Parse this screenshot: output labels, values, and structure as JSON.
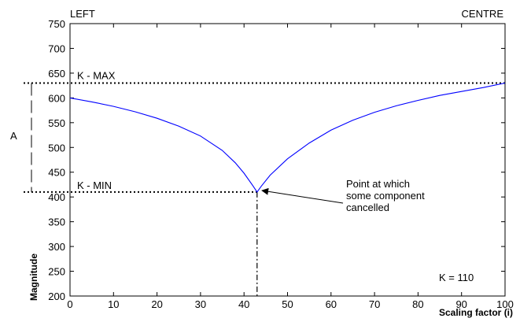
{
  "chart_data": {
    "type": "line",
    "title": "",
    "xlabel": "Scaling factor (i)",
    "ylabel": "Magnitude",
    "xlim": [
      0,
      100
    ],
    "ylim": [
      200,
      750
    ],
    "x_ticks": [
      0,
      10,
      20,
      30,
      40,
      50,
      60,
      70,
      80,
      90,
      100
    ],
    "y_ticks": [
      200,
      250,
      300,
      350,
      400,
      450,
      500,
      550,
      600,
      650,
      700,
      750
    ],
    "grid": false,
    "series": [
      {
        "color": "#0000ff",
        "x": [
          0,
          5,
          10,
          15,
          20,
          25,
          30,
          35,
          38,
          40,
          42,
          43,
          44,
          46,
          50,
          55,
          60,
          65,
          70,
          75,
          80,
          85,
          90,
          95,
          100
        ],
        "y": [
          600,
          592,
          583,
          572,
          559,
          543,
          523,
          494,
          469,
          448,
          423,
          410,
          422,
          444,
          477,
          509,
          535,
          555,
          571,
          584,
          595,
          605,
          613,
          621,
          630
        ]
      }
    ],
    "reference_lines": {
      "k_max": {
        "value": 630,
        "label": "K - MAX"
      },
      "k_min": {
        "value": 410,
        "label": "K - MIN"
      },
      "cancel_x": 43
    },
    "labels": {
      "left": "LEFT",
      "centre": "CENTRE",
      "range": "A",
      "k_value": "K = 110",
      "point_note": [
        "Point at which",
        "some component",
        "cancelled"
      ]
    }
  }
}
